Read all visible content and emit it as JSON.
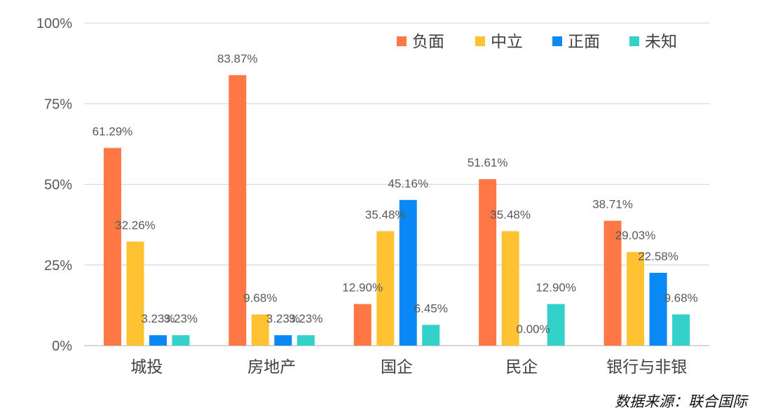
{
  "chart_data": {
    "type": "bar",
    "categories": [
      "城投",
      "房地产",
      "国企",
      "民企",
      "银行与非银"
    ],
    "series": [
      {
        "name": "负面",
        "color": "#FF7744",
        "values": [
          61.29,
          83.87,
          12.9,
          51.61,
          38.71
        ]
      },
      {
        "name": "中立",
        "color": "#FFC233",
        "values": [
          32.26,
          9.68,
          35.48,
          35.48,
          29.03
        ]
      },
      {
        "name": "正面",
        "color": "#0A88F5",
        "values": [
          3.23,
          3.23,
          45.16,
          0.0,
          22.58
        ]
      },
      {
        "name": "未知",
        "color": "#33D1C9",
        "values": [
          3.23,
          3.23,
          6.45,
          12.9,
          9.68
        ]
      }
    ],
    "ylim": [
      0,
      100
    ],
    "yticks": [
      0,
      25,
      50,
      75,
      100
    ],
    "ytick_labels": [
      "0%",
      "25%",
      "50%",
      "75%",
      "100%"
    ],
    "data_labels": [
      [
        "61.29%",
        "83.87%",
        "12.90%",
        "51.61%",
        "38.71%"
      ],
      [
        "32.26%",
        "9.68%",
        "35.48%",
        "35.48%",
        "29.03%"
      ],
      [
        "3.23%",
        "3.23%",
        "45.16%",
        "0.00%",
        "22.58%"
      ],
      [
        "3.23%",
        "3.23%",
        "6.45%",
        "12.90%",
        "9.68%"
      ]
    ],
    "grid": true,
    "legend_position": "top-right"
  },
  "source_text": "数据来源：联合国际"
}
